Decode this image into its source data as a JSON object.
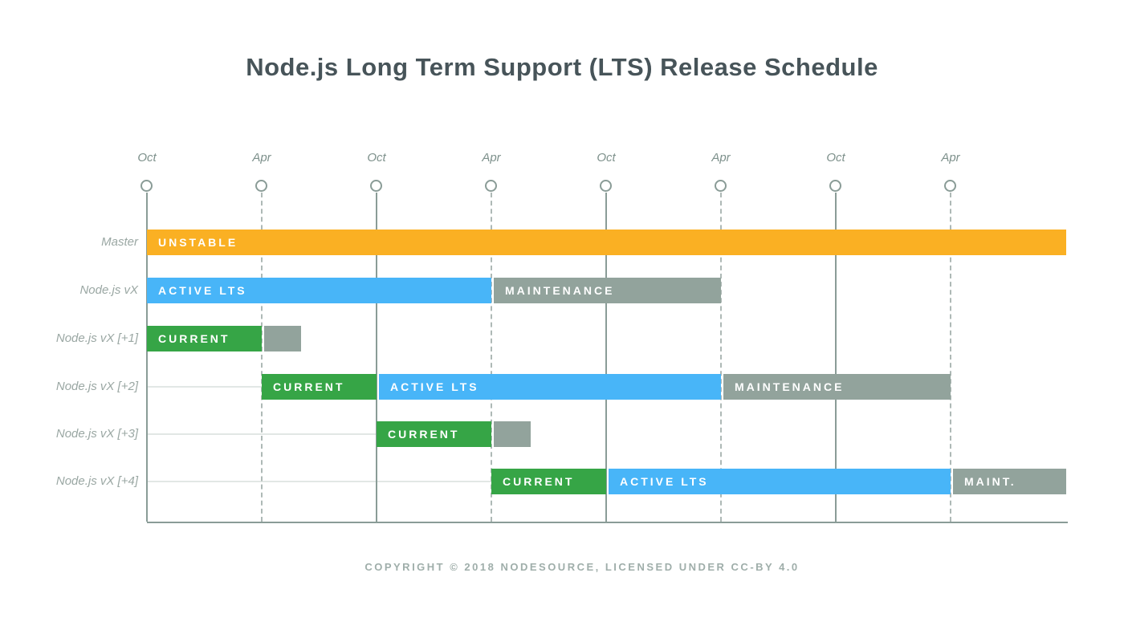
{
  "title": "Node.js Long Term Support (LTS) Release Schedule",
  "footer": "COPYRIGHT © 2018 NODESOURCE, LICENSED UNDER CC-BY 4.0",
  "legend_colors": {
    "unstable": "#FAB023",
    "current": "#36A546",
    "active_lts": "#48B5F8",
    "maintenance": "#92A39C"
  },
  "chart_data": {
    "type": "gantt",
    "title": "Node.js Long Term Support (LTS) Release Schedule",
    "x_axis": {
      "unit_description": "one tick = 6 months",
      "ticks": [
        {
          "label": "Oct",
          "line": "solid"
        },
        {
          "label": "Apr",
          "line": "dashed"
        },
        {
          "label": "Oct",
          "line": "solid"
        },
        {
          "label": "Apr",
          "line": "dashed"
        },
        {
          "label": "Oct",
          "line": "solid"
        },
        {
          "label": "Apr",
          "line": "dashed"
        },
        {
          "label": "Oct",
          "line": "solid"
        },
        {
          "label": "Apr",
          "line": "dashed"
        }
      ]
    },
    "rows": [
      {
        "label": "Master",
        "segments": [
          {
            "label": "UNSTABLE",
            "status": "unstable",
            "start": 0,
            "end": 8.01
          }
        ]
      },
      {
        "label": "Node.js vX",
        "segments": [
          {
            "label": "ACTIVE LTS",
            "status": "active_lts",
            "start": 0,
            "end": 3
          },
          {
            "label": "MAINTENANCE",
            "status": "maintenance",
            "start": 3,
            "end": 5
          }
        ]
      },
      {
        "label": "Node.js vX [+1]",
        "segments": [
          {
            "label": "CURRENT",
            "status": "current",
            "start": 0,
            "end": 1
          },
          {
            "label": "",
            "status": "maintenance",
            "start": 1,
            "end": 1.34
          }
        ]
      },
      {
        "label": "Node.js vX [+2]",
        "baseline_to": 1,
        "segments": [
          {
            "label": "CURRENT",
            "status": "current",
            "start": 1,
            "end": 2
          },
          {
            "label": "ACTIVE LTS",
            "status": "active_lts",
            "start": 2,
            "end": 5
          },
          {
            "label": "MAINTENANCE",
            "status": "maintenance",
            "start": 5,
            "end": 7
          }
        ]
      },
      {
        "label": "Node.js vX [+3]",
        "baseline_to": 2,
        "segments": [
          {
            "label": "CURRENT",
            "status": "current",
            "start": 2,
            "end": 3
          },
          {
            "label": "",
            "status": "maintenance",
            "start": 3,
            "end": 3.34
          }
        ]
      },
      {
        "label": "Node.js vX [+4]",
        "baseline_to": 3,
        "segments": [
          {
            "label": "CURRENT",
            "status": "current",
            "start": 3,
            "end": 4
          },
          {
            "label": "ACTIVE LTS",
            "status": "active_lts",
            "start": 4,
            "end": 7
          },
          {
            "label": "MAINT.",
            "status": "maintenance",
            "start": 7,
            "end": 8.01
          }
        ]
      }
    ]
  }
}
